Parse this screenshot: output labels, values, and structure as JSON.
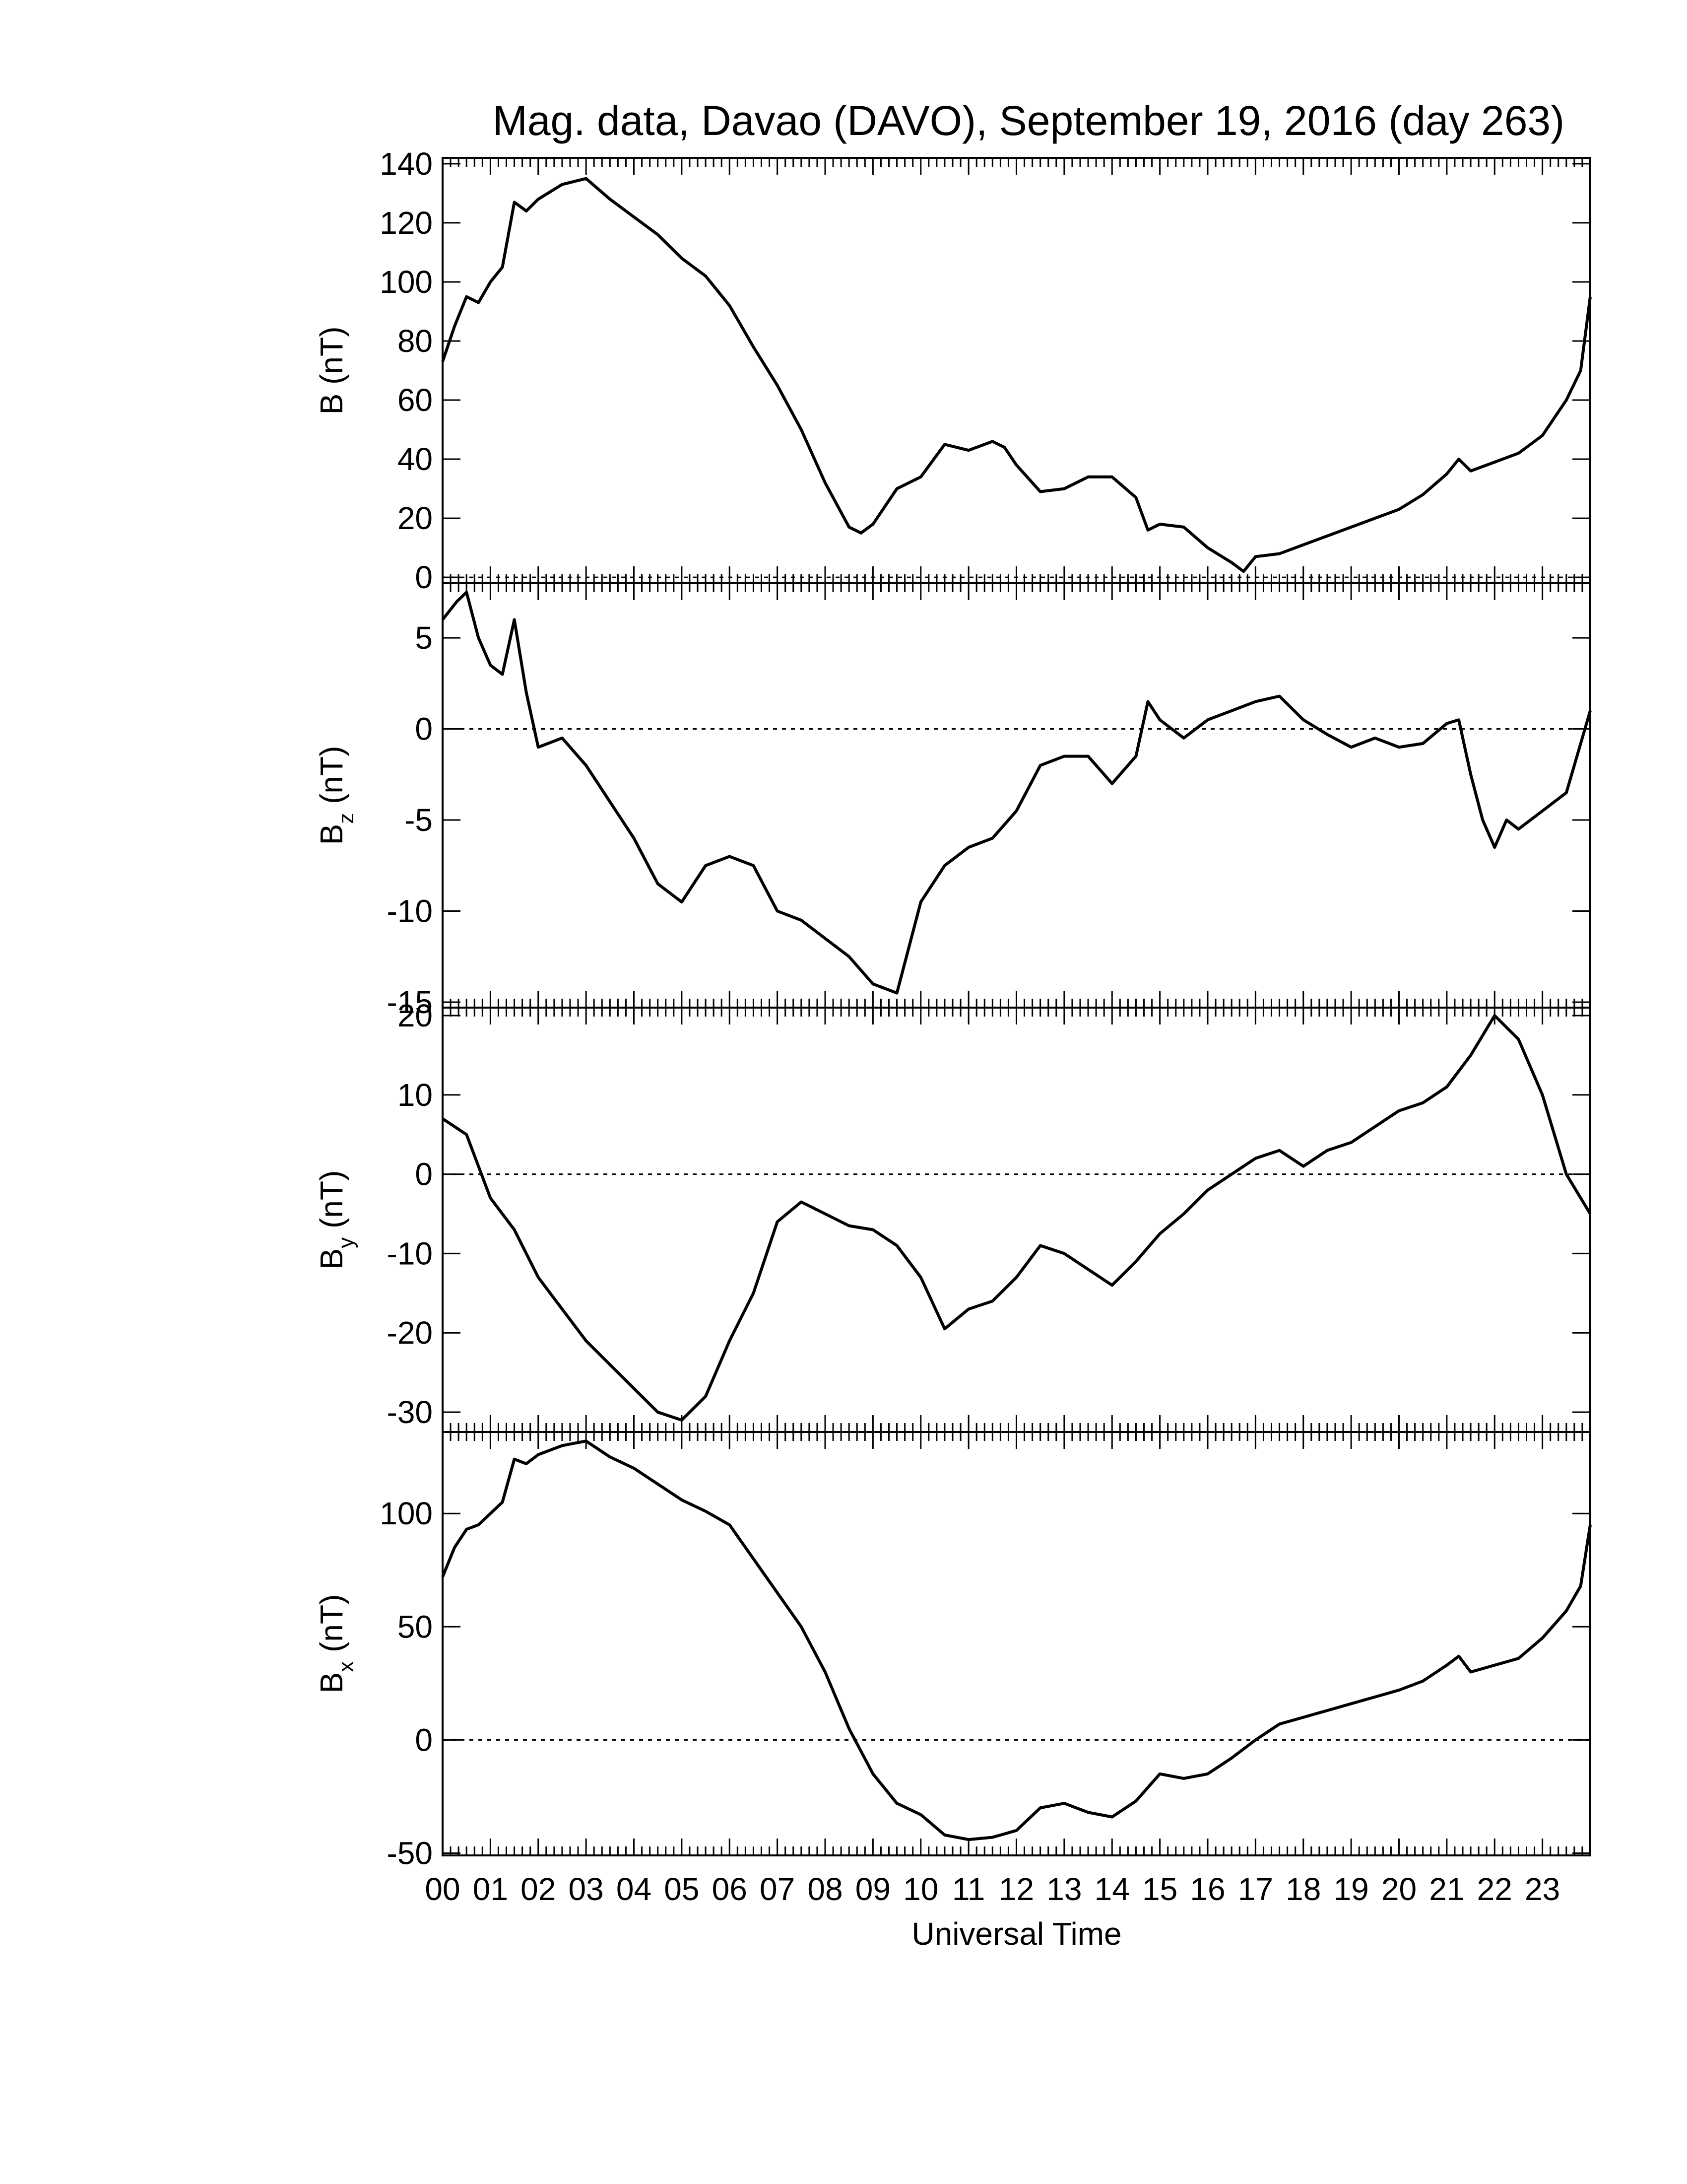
{
  "chart_data": [
    {
      "type": "line",
      "title": "Mag. data, Davao (DAVO), September 19, 2016 (day 263)",
      "ylabel": "B (nT)",
      "ylim": [
        -2,
        142
      ],
      "yticks": [
        0,
        20,
        40,
        60,
        80,
        100,
        120,
        140
      ],
      "xlim": [
        0,
        24
      ],
      "zero_line": true,
      "x": [
        0,
        0.25,
        0.5,
        0.75,
        1.0,
        1.25,
        1.5,
        1.75,
        2.0,
        2.5,
        3.0,
        3.5,
        4.0,
        4.5,
        5.0,
        5.5,
        6.0,
        6.5,
        7.0,
        7.5,
        8.0,
        8.5,
        8.75,
        9.0,
        9.5,
        10.0,
        10.5,
        11.0,
        11.5,
        11.75,
        12.0,
        12.5,
        13.0,
        13.5,
        14.0,
        14.5,
        14.75,
        15.0,
        15.5,
        16.0,
        16.5,
        16.75,
        17.0,
        17.5,
        18.0,
        18.5,
        19.0,
        19.5,
        20.0,
        20.5,
        21.0,
        21.25,
        21.5,
        22.0,
        22.5,
        23.0,
        23.5,
        23.8,
        24.0
      ],
      "y": [
        73,
        85,
        95,
        93,
        100,
        105,
        127,
        124,
        128,
        133,
        135,
        128,
        122,
        116,
        108,
        102,
        92,
        78,
        65,
        50,
        32,
        17,
        15,
        18,
        30,
        34,
        45,
        43,
        46,
        44,
        38,
        29,
        30,
        34,
        34,
        27,
        16,
        18,
        17,
        10,
        5,
        2,
        7,
        8,
        11,
        14,
        17,
        20,
        23,
        28,
        35,
        40,
        36,
        39,
        42,
        48,
        60,
        70,
        95
      ]
    },
    {
      "type": "line",
      "ylabel": "B",
      "ylabel_sub": "z",
      "ylabel_unit": "(nT)",
      "ylim": [
        -15.3,
        8
      ],
      "yticks": [
        5,
        0,
        -5,
        -10,
        -15
      ],
      "xlim": [
        0,
        24
      ],
      "zero_line": true,
      "x": [
        0,
        0.3,
        0.5,
        0.75,
        1.0,
        1.25,
        1.5,
        1.75,
        2.0,
        2.5,
        3.0,
        3.5,
        4.0,
        4.5,
        5.0,
        5.5,
        6.0,
        6.5,
        7.0,
        7.5,
        8.0,
        8.5,
        9.0,
        9.5,
        10.0,
        10.5,
        11.0,
        11.5,
        12.0,
        12.5,
        13.0,
        13.5,
        14.0,
        14.5,
        14.75,
        15.0,
        15.5,
        16.0,
        16.5,
        17.0,
        17.5,
        18.0,
        18.5,
        19.0,
        19.5,
        20.0,
        20.5,
        21.0,
        21.25,
        21.5,
        21.75,
        22.0,
        22.25,
        22.5,
        23.0,
        23.5,
        24.0
      ],
      "y": [
        6,
        7,
        7.5,
        5,
        3.5,
        3,
        6,
        2,
        -1,
        -0.5,
        -2,
        -4,
        -6,
        -8.5,
        -9.5,
        -7.5,
        -7,
        -7.5,
        -10,
        -10.5,
        -11.5,
        -12.5,
        -14,
        -14.5,
        -9.5,
        -7.5,
        -6.5,
        -6,
        -4.5,
        -2,
        -1.5,
        -1.5,
        -3,
        -1.5,
        1.5,
        0.5,
        -0.5,
        0.5,
        1,
        1.5,
        1.8,
        0.5,
        -0.3,
        -1,
        -0.5,
        -1,
        -0.8,
        0.3,
        0.5,
        -2.5,
        -5,
        -6.5,
        -5,
        -5.5,
        -4.5,
        -3.5,
        1
      ]
    },
    {
      "type": "line",
      "ylabel": "B",
      "ylabel_sub": "y",
      "ylabel_unit": "(nT)",
      "ylim": [
        -32.5,
        21
      ],
      "yticks": [
        20,
        10,
        0,
        -10,
        -20,
        -30
      ],
      "xlim": [
        0,
        24
      ],
      "zero_line": true,
      "x": [
        0,
        0.5,
        1.0,
        1.5,
        2.0,
        2.5,
        3.0,
        3.5,
        4.0,
        4.5,
        5.0,
        5.5,
        6.0,
        6.5,
        7.0,
        7.5,
        8.0,
        8.5,
        9.0,
        9.5,
        10.0,
        10.5,
        11.0,
        11.5,
        12.0,
        12.5,
        13.0,
        13.5,
        14.0,
        14.5,
        15.0,
        15.5,
        16.0,
        16.5,
        17.0,
        17.5,
        18.0,
        18.5,
        19.0,
        19.5,
        20.0,
        20.5,
        21.0,
        21.5,
        22.0,
        22.5,
        23.0,
        23.5,
        24.0
      ],
      "y": [
        7,
        5,
        -3,
        -7,
        -13,
        -17,
        -21,
        -24,
        -27,
        -30,
        -31,
        -28,
        -21,
        -15,
        -6,
        -3.5,
        -5,
        -6.5,
        -7,
        -9,
        -13,
        -19.5,
        -17,
        -16,
        -13,
        -9,
        -10,
        -12,
        -14,
        -11,
        -7.5,
        -5,
        -2,
        0,
        2,
        3,
        1,
        3,
        4,
        6,
        8,
        9,
        11,
        15,
        20,
        17,
        10,
        0,
        -5
      ]
    },
    {
      "type": "line",
      "ylabel": "B",
      "ylabel_sub": "x",
      "ylabel_unit": "(nT)",
      "ylim": [
        -51,
        136
      ],
      "yticks": [
        100,
        50,
        0,
        -50
      ],
      "xlim": [
        0,
        24
      ],
      "xticks": [
        "00",
        "01",
        "02",
        "03",
        "04",
        "05",
        "06",
        "07",
        "08",
        "09",
        "10",
        "11",
        "12",
        "13",
        "14",
        "15",
        "16",
        "17",
        "18",
        "19",
        "20",
        "21",
        "22",
        "23"
      ],
      "xlabel": "Universal Time",
      "zero_line": true,
      "x": [
        0,
        0.25,
        0.5,
        0.75,
        1.0,
        1.25,
        1.5,
        1.75,
        2.0,
        2.5,
        3.0,
        3.5,
        4.0,
        4.5,
        5.0,
        5.5,
        6.0,
        6.5,
        7.0,
        7.5,
        8.0,
        8.5,
        9.0,
        9.5,
        10.0,
        10.5,
        11.0,
        11.5,
        12.0,
        12.5,
        13.0,
        13.5,
        14.0,
        14.5,
        15.0,
        15.5,
        16.0,
        16.5,
        17.0,
        17.5,
        18.0,
        18.5,
        19.0,
        19.5,
        20.0,
        20.5,
        21.0,
        21.25,
        21.5,
        22.0,
        22.5,
        23.0,
        23.5,
        23.8,
        24.0
      ],
      "y": [
        72,
        85,
        93,
        95,
        100,
        105,
        124,
        122,
        126,
        130,
        132,
        125,
        120,
        113,
        106,
        101,
        95,
        80,
        65,
        50,
        30,
        5,
        -15,
        -28,
        -33,
        -42,
        -44,
        -43,
        -40,
        -30,
        -28,
        -32,
        -34,
        -27,
        -15,
        -17,
        -15,
        -8,
        0,
        7,
        10,
        13,
        16,
        19,
        22,
        26,
        33,
        37,
        30,
        33,
        36,
        45,
        57,
        68,
        95
      ]
    }
  ]
}
